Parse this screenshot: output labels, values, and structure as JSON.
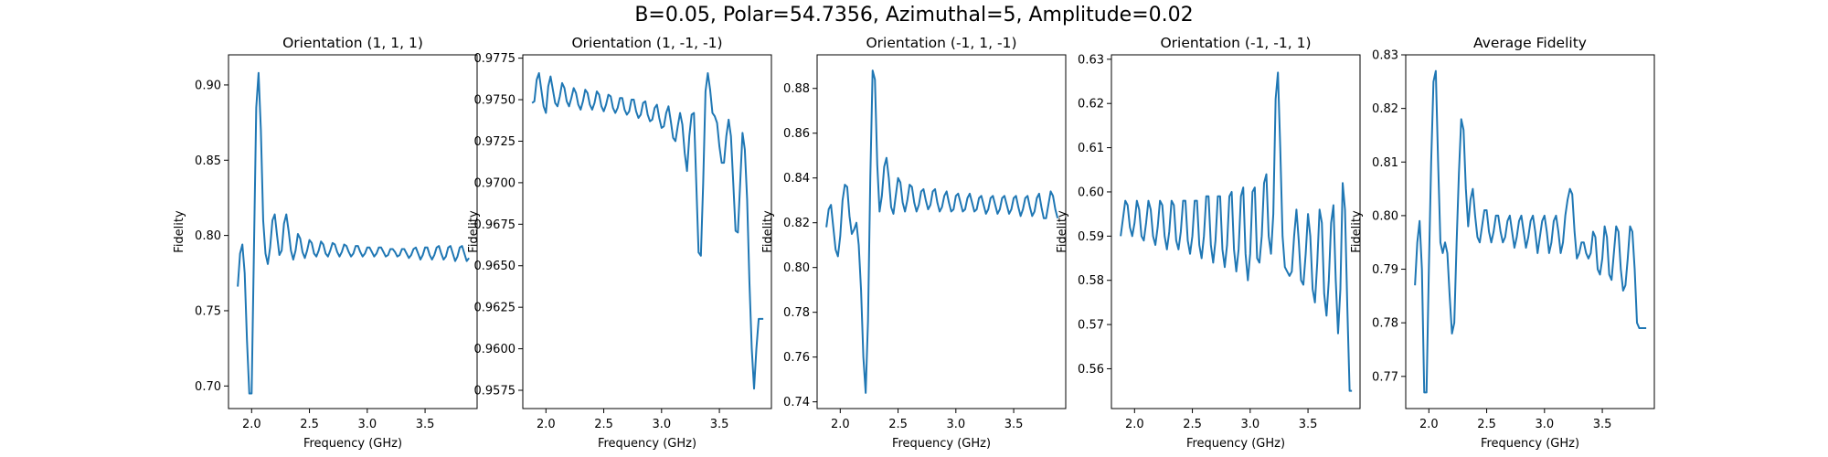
{
  "suptitle": "B=0.05, Polar=54.7356, Azimuthal=5, Amplitude=0.02",
  "line_color": "#1f77b4",
  "chart_data": [
    {
      "type": "line",
      "title": "Orientation (1, 1, 1)",
      "xlabel": "Frequency (GHz)",
      "ylabel": "Fidelity",
      "xlim": [
        1.8,
        3.95
      ],
      "ylim": [
        0.685,
        0.92
      ],
      "xticks": [
        "2.0",
        "2.5",
        "3.0",
        "3.5"
      ],
      "xtick_values": [
        2.0,
        2.5,
        3.0,
        3.5
      ],
      "yticks": [
        "0.70",
        "0.75",
        "0.80",
        "0.85",
        "0.90"
      ],
      "ytick_values": [
        0.7,
        0.75,
        0.8,
        0.85,
        0.9
      ],
      "x": [
        1.88,
        1.9,
        1.92,
        1.94,
        1.96,
        1.98,
        2.0,
        2.02,
        2.04,
        2.06,
        2.08,
        2.1,
        2.12,
        2.14,
        2.16,
        2.18,
        2.2,
        2.22,
        2.24,
        2.26,
        2.28,
        2.3,
        2.32,
        2.34,
        2.36,
        2.38,
        2.4,
        2.42,
        2.44,
        2.46,
        2.48,
        2.5,
        2.52,
        2.54,
        2.56,
        2.58,
        2.6,
        2.62,
        2.64,
        2.66,
        2.68,
        2.7,
        2.72,
        2.74,
        2.76,
        2.78,
        2.8,
        2.82,
        2.84,
        2.86,
        2.88,
        2.9,
        2.92,
        2.94,
        2.96,
        2.98,
        3.0,
        3.02,
        3.04,
        3.06,
        3.08,
        3.1,
        3.12,
        3.14,
        3.16,
        3.18,
        3.2,
        3.22,
        3.24,
        3.26,
        3.28,
        3.3,
        3.32,
        3.34,
        3.36,
        3.38,
        3.4,
        3.42,
        3.44,
        3.46,
        3.48,
        3.5,
        3.52,
        3.54,
        3.56,
        3.58,
        3.6,
        3.62,
        3.64,
        3.66,
        3.68,
        3.7,
        3.72,
        3.74,
        3.76,
        3.78,
        3.8,
        3.82,
        3.84,
        3.86,
        3.88
      ],
      "y": [
        0.766,
        0.788,
        0.794,
        0.775,
        0.73,
        0.695,
        0.695,
        0.79,
        0.885,
        0.908,
        0.87,
        0.81,
        0.788,
        0.781,
        0.792,
        0.81,
        0.814,
        0.8,
        0.787,
        0.79,
        0.808,
        0.814,
        0.803,
        0.79,
        0.784,
        0.79,
        0.801,
        0.798,
        0.789,
        0.785,
        0.79,
        0.797,
        0.795,
        0.788,
        0.786,
        0.79,
        0.796,
        0.794,
        0.788,
        0.786,
        0.79,
        0.795,
        0.794,
        0.789,
        0.786,
        0.789,
        0.794,
        0.793,
        0.789,
        0.786,
        0.788,
        0.793,
        0.793,
        0.789,
        0.786,
        0.788,
        0.792,
        0.792,
        0.789,
        0.786,
        0.788,
        0.792,
        0.792,
        0.789,
        0.786,
        0.787,
        0.791,
        0.791,
        0.789,
        0.786,
        0.787,
        0.791,
        0.791,
        0.788,
        0.785,
        0.787,
        0.791,
        0.792,
        0.788,
        0.784,
        0.787,
        0.792,
        0.792,
        0.787,
        0.784,
        0.787,
        0.792,
        0.793,
        0.788,
        0.784,
        0.786,
        0.792,
        0.793,
        0.788,
        0.783,
        0.786,
        0.792,
        0.793,
        0.788,
        0.783,
        0.785
      ]
    },
    {
      "type": "line",
      "title": "Orientation (1, -1, -1)",
      "xlabel": "Frequency (GHz)",
      "ylabel": "Fidelity",
      "xlim": [
        1.8,
        3.95
      ],
      "ylim": [
        0.9564,
        0.9777
      ],
      "xticks": [
        "2.0",
        "2.5",
        "3.0",
        "3.5"
      ],
      "xtick_values": [
        2.0,
        2.5,
        3.0,
        3.5
      ],
      "yticks": [
        "0.9575",
        "0.9600",
        "0.9625",
        "0.9650",
        "0.9675",
        "0.9700",
        "0.9725",
        "0.9750",
        "0.9775"
      ],
      "ytick_values": [
        0.9575,
        0.96,
        0.9625,
        0.965,
        0.9675,
        0.97,
        0.9725,
        0.975,
        0.9775
      ],
      "x": [
        1.88,
        1.9,
        1.92,
        1.94,
        1.96,
        1.98,
        2.0,
        2.02,
        2.04,
        2.06,
        2.08,
        2.1,
        2.12,
        2.14,
        2.16,
        2.18,
        2.2,
        2.22,
        2.24,
        2.26,
        2.28,
        2.3,
        2.32,
        2.34,
        2.36,
        2.38,
        2.4,
        2.42,
        2.44,
        2.46,
        2.48,
        2.5,
        2.52,
        2.54,
        2.56,
        2.58,
        2.6,
        2.62,
        2.64,
        2.66,
        2.68,
        2.7,
        2.72,
        2.74,
        2.76,
        2.78,
        2.8,
        2.82,
        2.84,
        2.86,
        2.88,
        2.9,
        2.92,
        2.94,
        2.96,
        2.98,
        3.0,
        3.02,
        3.04,
        3.06,
        3.08,
        3.1,
        3.12,
        3.14,
        3.16,
        3.18,
        3.2,
        3.22,
        3.24,
        3.26,
        3.28,
        3.3,
        3.32,
        3.34,
        3.36,
        3.38,
        3.4,
        3.42,
        3.44,
        3.46,
        3.48,
        3.5,
        3.52,
        3.54,
        3.56,
        3.58,
        3.6,
        3.62,
        3.64,
        3.66,
        3.68,
        3.7,
        3.72,
        3.74,
        3.76,
        3.78,
        3.8,
        3.82,
        3.84,
        3.86,
        3.88
      ],
      "y": [
        0.9748,
        0.9749,
        0.9762,
        0.9766,
        0.9756,
        0.9746,
        0.9742,
        0.9758,
        0.9764,
        0.9756,
        0.9748,
        0.9746,
        0.9752,
        0.976,
        0.9757,
        0.9749,
        0.9746,
        0.9751,
        0.9757,
        0.9754,
        0.9747,
        0.9744,
        0.9749,
        0.9756,
        0.9754,
        0.9747,
        0.9744,
        0.9748,
        0.9755,
        0.9753,
        0.9746,
        0.9743,
        0.9747,
        0.9753,
        0.9752,
        0.9745,
        0.9742,
        0.9745,
        0.9751,
        0.9751,
        0.9744,
        0.9741,
        0.9743,
        0.975,
        0.975,
        0.9743,
        0.9739,
        0.9741,
        0.9748,
        0.9749,
        0.9741,
        0.9737,
        0.9738,
        0.9745,
        0.9747,
        0.9739,
        0.9733,
        0.9734,
        0.9742,
        0.9746,
        0.9737,
        0.9727,
        0.9725,
        0.9734,
        0.9742,
        0.9735,
        0.9718,
        0.9707,
        0.9728,
        0.9741,
        0.9742,
        0.97,
        0.9658,
        0.9656,
        0.97,
        0.9755,
        0.9766,
        0.9756,
        0.9742,
        0.974,
        0.9736,
        0.9722,
        0.9712,
        0.9712,
        0.9728,
        0.9738,
        0.9728,
        0.97,
        0.9671,
        0.967,
        0.97,
        0.973,
        0.972,
        0.969,
        0.964,
        0.96,
        0.9576,
        0.96,
        0.9618,
        0.9618,
        0.9618
      ]
    },
    {
      "type": "line",
      "title": "Orientation (-1, 1, -1)",
      "xlabel": "Frequency (GHz)",
      "ylabel": "Fidelity",
      "xlim": [
        1.8,
        3.95
      ],
      "ylim": [
        0.737,
        0.895
      ],
      "xticks": [
        "2.0",
        "2.5",
        "3.0",
        "3.5"
      ],
      "xtick_values": [
        2.0,
        2.5,
        3.0,
        3.5
      ],
      "yticks": [
        "0.74",
        "0.76",
        "0.78",
        "0.80",
        "0.82",
        "0.84",
        "0.86",
        "0.88"
      ],
      "ytick_values": [
        0.74,
        0.76,
        0.78,
        0.8,
        0.82,
        0.84,
        0.86,
        0.88
      ],
      "x": [
        1.88,
        1.9,
        1.92,
        1.94,
        1.96,
        1.98,
        2.0,
        2.02,
        2.04,
        2.06,
        2.08,
        2.1,
        2.12,
        2.14,
        2.16,
        2.18,
        2.2,
        2.22,
        2.24,
        2.26,
        2.28,
        2.3,
        2.32,
        2.34,
        2.36,
        2.38,
        2.4,
        2.42,
        2.44,
        2.46,
        2.48,
        2.5,
        2.52,
        2.54,
        2.56,
        2.58,
        2.6,
        2.62,
        2.64,
        2.66,
        2.68,
        2.7,
        2.72,
        2.74,
        2.76,
        2.78,
        2.8,
        2.82,
        2.84,
        2.86,
        2.88,
        2.9,
        2.92,
        2.94,
        2.96,
        2.98,
        3.0,
        3.02,
        3.04,
        3.06,
        3.08,
        3.1,
        3.12,
        3.14,
        3.16,
        3.18,
        3.2,
        3.22,
        3.24,
        3.26,
        3.28,
        3.3,
        3.32,
        3.34,
        3.36,
        3.38,
        3.4,
        3.42,
        3.44,
        3.46,
        3.48,
        3.5,
        3.52,
        3.54,
        3.56,
        3.58,
        3.6,
        3.62,
        3.64,
        3.66,
        3.68,
        3.7,
        3.72,
        3.74,
        3.76,
        3.78,
        3.8,
        3.82,
        3.84,
        3.86,
        3.88
      ],
      "y": [
        0.818,
        0.826,
        0.828,
        0.818,
        0.808,
        0.805,
        0.814,
        0.83,
        0.837,
        0.836,
        0.823,
        0.815,
        0.817,
        0.82,
        0.81,
        0.79,
        0.76,
        0.744,
        0.776,
        0.84,
        0.888,
        0.884,
        0.846,
        0.825,
        0.832,
        0.845,
        0.849,
        0.84,
        0.827,
        0.824,
        0.832,
        0.84,
        0.838,
        0.829,
        0.825,
        0.83,
        0.837,
        0.836,
        0.829,
        0.825,
        0.828,
        0.834,
        0.835,
        0.83,
        0.826,
        0.828,
        0.834,
        0.835,
        0.829,
        0.825,
        0.827,
        0.832,
        0.834,
        0.829,
        0.825,
        0.826,
        0.832,
        0.833,
        0.829,
        0.825,
        0.826,
        0.831,
        0.833,
        0.829,
        0.825,
        0.826,
        0.831,
        0.832,
        0.828,
        0.824,
        0.826,
        0.831,
        0.832,
        0.828,
        0.824,
        0.826,
        0.831,
        0.832,
        0.828,
        0.824,
        0.826,
        0.831,
        0.832,
        0.827,
        0.823,
        0.826,
        0.831,
        0.832,
        0.827,
        0.823,
        0.825,
        0.831,
        0.833,
        0.827,
        0.822,
        0.822,
        0.828,
        0.834,
        0.832,
        0.826,
        0.822
      ]
    },
    {
      "type": "line",
      "title": "Orientation (-1, -1, 1)",
      "xlabel": "Frequency (GHz)",
      "ylabel": "Fidelity",
      "xlim": [
        1.8,
        3.95
      ],
      "ylim": [
        0.551,
        0.631
      ],
      "xticks": [
        "2.0",
        "2.5",
        "3.0",
        "3.5"
      ],
      "xtick_values": [
        2.0,
        2.5,
        3.0,
        3.5
      ],
      "yticks": [
        "0.56",
        "0.57",
        "0.58",
        "0.59",
        "0.60",
        "0.61",
        "0.62",
        "0.63"
      ],
      "ytick_values": [
        0.56,
        0.57,
        0.58,
        0.59,
        0.6,
        0.61,
        0.62,
        0.63
      ],
      "x": [
        1.88,
        1.9,
        1.92,
        1.94,
        1.96,
        1.98,
        2.0,
        2.02,
        2.04,
        2.06,
        2.08,
        2.1,
        2.12,
        2.14,
        2.16,
        2.18,
        2.2,
        2.22,
        2.24,
        2.26,
        2.28,
        2.3,
        2.32,
        2.34,
        2.36,
        2.38,
        2.4,
        2.42,
        2.44,
        2.46,
        2.48,
        2.5,
        2.52,
        2.54,
        2.56,
        2.58,
        2.6,
        2.62,
        2.64,
        2.66,
        2.68,
        2.7,
        2.72,
        2.74,
        2.76,
        2.78,
        2.8,
        2.82,
        2.84,
        2.86,
        2.88,
        2.9,
        2.92,
        2.94,
        2.96,
        2.98,
        3.0,
        3.02,
        3.04,
        3.06,
        3.08,
        3.1,
        3.12,
        3.14,
        3.16,
        3.18,
        3.2,
        3.22,
        3.24,
        3.26,
        3.28,
        3.3,
        3.32,
        3.34,
        3.36,
        3.38,
        3.4,
        3.42,
        3.44,
        3.46,
        3.48,
        3.5,
        3.52,
        3.54,
        3.56,
        3.58,
        3.6,
        3.62,
        3.64,
        3.66,
        3.68,
        3.7,
        3.72,
        3.74,
        3.76,
        3.78,
        3.8,
        3.82,
        3.84,
        3.86,
        3.88
      ],
      "y": [
        0.59,
        0.594,
        0.598,
        0.597,
        0.592,
        0.59,
        0.593,
        0.598,
        0.596,
        0.59,
        0.589,
        0.593,
        0.598,
        0.596,
        0.59,
        0.588,
        0.592,
        0.598,
        0.597,
        0.59,
        0.587,
        0.591,
        0.598,
        0.597,
        0.589,
        0.587,
        0.591,
        0.598,
        0.598,
        0.589,
        0.586,
        0.59,
        0.598,
        0.598,
        0.588,
        0.585,
        0.59,
        0.599,
        0.599,
        0.588,
        0.584,
        0.589,
        0.599,
        0.599,
        0.587,
        0.583,
        0.588,
        0.599,
        0.6,
        0.587,
        0.582,
        0.587,
        0.599,
        0.601,
        0.586,
        0.58,
        0.586,
        0.6,
        0.601,
        0.585,
        0.584,
        0.59,
        0.602,
        0.604,
        0.59,
        0.586,
        0.595,
        0.621,
        0.627,
        0.61,
        0.59,
        0.583,
        0.582,
        0.581,
        0.582,
        0.59,
        0.596,
        0.589,
        0.58,
        0.579,
        0.586,
        0.595,
        0.59,
        0.578,
        0.575,
        0.584,
        0.596,
        0.593,
        0.577,
        0.572,
        0.58,
        0.593,
        0.597,
        0.58,
        0.568,
        0.578,
        0.602,
        0.596,
        0.574,
        0.555,
        0.555
      ]
    },
    {
      "type": "line",
      "title": "Average Fidelity",
      "xlabel": "Frequency (GHz)",
      "ylabel": "Fidelity",
      "xlim": [
        1.8,
        3.95
      ],
      "ylim": [
        0.764,
        0.83
      ],
      "xticks": [
        "2.0",
        "2.5",
        "3.0",
        "3.5"
      ],
      "xtick_values": [
        2.0,
        2.5,
        3.0,
        3.5
      ],
      "yticks": [
        "0.77",
        "0.78",
        "0.79",
        "0.80",
        "0.81",
        "0.82",
        "0.83"
      ],
      "ytick_values": [
        0.77,
        0.78,
        0.79,
        0.8,
        0.81,
        0.82,
        0.83
      ],
      "x": [
        1.88,
        1.9,
        1.92,
        1.94,
        1.96,
        1.98,
        2.0,
        2.02,
        2.04,
        2.06,
        2.08,
        2.1,
        2.12,
        2.14,
        2.16,
        2.18,
        2.2,
        2.22,
        2.24,
        2.26,
        2.28,
        2.3,
        2.32,
        2.34,
        2.36,
        2.38,
        2.4,
        2.42,
        2.44,
        2.46,
        2.48,
        2.5,
        2.52,
        2.54,
        2.56,
        2.58,
        2.6,
        2.62,
        2.64,
        2.66,
        2.68,
        2.7,
        2.72,
        2.74,
        2.76,
        2.78,
        2.8,
        2.82,
        2.84,
        2.86,
        2.88,
        2.9,
        2.92,
        2.94,
        2.96,
        2.98,
        3.0,
        3.02,
        3.04,
        3.06,
        3.08,
        3.1,
        3.12,
        3.14,
        3.16,
        3.18,
        3.2,
        3.22,
        3.24,
        3.26,
        3.28,
        3.3,
        3.32,
        3.34,
        3.36,
        3.38,
        3.4,
        3.42,
        3.44,
        3.46,
        3.48,
        3.5,
        3.52,
        3.54,
        3.56,
        3.58,
        3.6,
        3.62,
        3.64,
        3.66,
        3.68,
        3.7,
        3.72,
        3.74,
        3.76,
        3.78,
        3.8,
        3.82,
        3.84,
        3.86,
        3.88
      ],
      "y": [
        0.787,
        0.795,
        0.799,
        0.79,
        0.767,
        0.767,
        0.79,
        0.81,
        0.825,
        0.827,
        0.81,
        0.795,
        0.793,
        0.795,
        0.793,
        0.785,
        0.778,
        0.78,
        0.795,
        0.808,
        0.818,
        0.816,
        0.805,
        0.798,
        0.803,
        0.805,
        0.8,
        0.796,
        0.795,
        0.798,
        0.801,
        0.801,
        0.797,
        0.795,
        0.797,
        0.8,
        0.8,
        0.797,
        0.795,
        0.796,
        0.799,
        0.8,
        0.797,
        0.794,
        0.796,
        0.799,
        0.8,
        0.797,
        0.794,
        0.796,
        0.799,
        0.8,
        0.797,
        0.793,
        0.796,
        0.799,
        0.8,
        0.797,
        0.793,
        0.795,
        0.799,
        0.8,
        0.797,
        0.793,
        0.795,
        0.8,
        0.803,
        0.805,
        0.804,
        0.797,
        0.792,
        0.793,
        0.795,
        0.795,
        0.793,
        0.792,
        0.793,
        0.797,
        0.796,
        0.79,
        0.789,
        0.792,
        0.798,
        0.796,
        0.789,
        0.788,
        0.793,
        0.798,
        0.797,
        0.79,
        0.786,
        0.787,
        0.792,
        0.798,
        0.797,
        0.79,
        0.78,
        0.779,
        0.779,
        0.779,
        0.779
      ]
    }
  ]
}
